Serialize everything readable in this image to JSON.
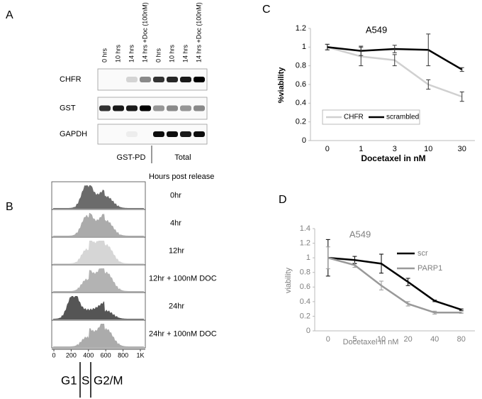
{
  "blot": {
    "letter": "A",
    "lanes": [
      "0 hrs",
      "10 hrs",
      "14 hrs",
      "14 hrs +Doc (100nM)",
      "0 hrs",
      "10 hrs",
      "14 hrs",
      "14 hrs +Doc (100nM)"
    ],
    "rows": [
      "CHFR",
      "GST",
      "GAPDH"
    ],
    "groups": [
      "GST-PD",
      "Total"
    ]
  },
  "flow": {
    "letter": "B",
    "heading": "Hours post release",
    "rows": [
      {
        "label": "0hr",
        "color": "#6b6b6b"
      },
      {
        "label": "4hr",
        "color": "#ababab"
      },
      {
        "label": "12hr",
        "color": "#d6d6d6"
      },
      {
        "label": "12hr + 100nM DOC",
        "color": "#b3b3b3"
      },
      {
        "label": "24hr",
        "color": "#555555"
      },
      {
        "label": "24hr + 100nM DOC",
        "color": "#ababab"
      }
    ],
    "xticks": [
      "0",
      "200",
      "400",
      "600",
      "800",
      "1K"
    ],
    "phases": [
      "G1",
      "S",
      "G2/M"
    ]
  },
  "chart_data": [
    {
      "type": "line",
      "letter": "C",
      "title": "A549",
      "x_label": "Docetaxel in nM",
      "y_label": "%viability",
      "categories": [
        "0",
        "1",
        "3",
        "10",
        "30"
      ],
      "ylim": [
        0,
        1.2
      ],
      "yticks": [
        0,
        0.2,
        0.4,
        0.6,
        0.8,
        1,
        1.2
      ],
      "legend": "bottom-left-row",
      "series": [
        {
          "name": "CHFR",
          "color": "#d0d0d0",
          "values": [
            1,
            0.9,
            0.86,
            0.6,
            0.47
          ],
          "errors": [
            0.03,
            0.1,
            0.06,
            0.05,
            0.05
          ]
        },
        {
          "name": "scrambled",
          "color": "#000000",
          "values": [
            1,
            0.96,
            0.98,
            0.97,
            0.76
          ],
          "errors": [
            0.03,
            0.05,
            0.04,
            0.17,
            0.02
          ]
        }
      ]
    },
    {
      "type": "line",
      "letter": "D",
      "title": "A549",
      "x_label": "Docetaxel in nM",
      "y_label": "viability",
      "categories": [
        "0",
        "5",
        "10",
        "20",
        "40",
        "80"
      ],
      "ylim": [
        0,
        1.4
      ],
      "yticks": [
        0,
        0.2,
        0.4,
        0.6,
        0.8,
        1,
        1.2,
        1.4
      ],
      "legend": "top-right-column",
      "series": [
        {
          "name": "scr",
          "color": "#000000",
          "values": [
            1,
            0.97,
            0.92,
            0.67,
            0.41,
            0.29
          ],
          "errors": [
            0.25,
            0.05,
            0.13,
            0.05,
            0.01,
            0.01
          ]
        },
        {
          "name": "PARP1",
          "color": "#999999",
          "values": [
            1,
            0.9,
            0.62,
            0.37,
            0.25,
            0.25
          ],
          "errors": [
            0.15,
            0.03,
            0.06,
            0.03,
            0.02,
            0.01
          ]
        }
      ]
    }
  ]
}
